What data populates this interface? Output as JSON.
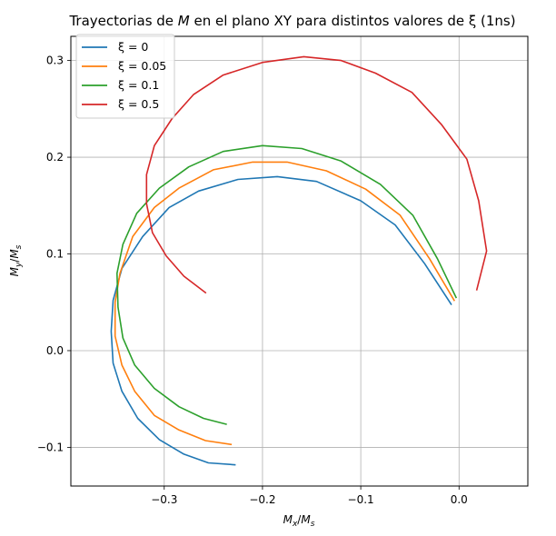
{
  "chart_data": {
    "type": "line",
    "title": "Trayectorias de M en el plano XY para distintos valores de ξ (1ns)",
    "title_parts": {
      "before": "Trayectorias de ",
      "symbol": "M",
      "after": " en el plano XY para distintos valores de ξ (1ns)"
    },
    "xlabel": "Mx/Ms",
    "ylabel": "My/Ms",
    "xlim": [
      -0.395,
      0.07
    ],
    "ylim": [
      -0.14,
      0.325
    ],
    "xticks": [
      -0.3,
      -0.2,
      -0.1,
      0.0
    ],
    "xtick_labels": [
      "−0.3",
      "−0.2",
      "−0.1",
      "0.0"
    ],
    "yticks": [
      -0.1,
      0.0,
      0.1,
      0.2,
      0.3
    ],
    "ytick_labels": [
      "−0.1",
      "0.0",
      "0.1",
      "0.2",
      "0.3"
    ],
    "grid": true,
    "legend_position": "upper-left",
    "series": [
      {
        "name": "ξ = 0",
        "color": "#1f77b4",
        "points": [
          [
            -0.008,
            0.048
          ],
          [
            -0.035,
            0.09
          ],
          [
            -0.065,
            0.13
          ],
          [
            -0.1,
            0.155
          ],
          [
            -0.145,
            0.175
          ],
          [
            -0.185,
            0.18
          ],
          [
            -0.225,
            0.177
          ],
          [
            -0.265,
            0.165
          ],
          [
            -0.295,
            0.148
          ],
          [
            -0.322,
            0.118
          ],
          [
            -0.343,
            0.085
          ],
          [
            -0.352,
            0.052
          ],
          [
            -0.354,
            0.02
          ],
          [
            -0.352,
            -0.013
          ],
          [
            -0.343,
            -0.042
          ],
          [
            -0.327,
            -0.07
          ],
          [
            -0.305,
            -0.092
          ],
          [
            -0.28,
            -0.107
          ],
          [
            -0.255,
            -0.116
          ],
          [
            -0.228,
            -0.118
          ]
        ]
      },
      {
        "name": "ξ = 0.05",
        "color": "#ff7f0e",
        "points": [
          [
            -0.005,
            0.052
          ],
          [
            -0.03,
            0.095
          ],
          [
            -0.06,
            0.14
          ],
          [
            -0.095,
            0.167
          ],
          [
            -0.135,
            0.186
          ],
          [
            -0.175,
            0.195
          ],
          [
            -0.21,
            0.195
          ],
          [
            -0.25,
            0.187
          ],
          [
            -0.285,
            0.168
          ],
          [
            -0.31,
            0.148
          ],
          [
            -0.332,
            0.118
          ],
          [
            -0.345,
            0.08
          ],
          [
            -0.35,
            0.05
          ],
          [
            -0.35,
            0.015
          ],
          [
            -0.343,
            -0.015
          ],
          [
            -0.33,
            -0.042
          ],
          [
            -0.31,
            -0.067
          ],
          [
            -0.285,
            -0.082
          ],
          [
            -0.258,
            -0.093
          ],
          [
            -0.232,
            -0.097
          ]
        ]
      },
      {
        "name": "ξ = 0.1",
        "color": "#2ca02c",
        "points": [
          [
            -0.003,
            0.055
          ],
          [
            -0.022,
            0.095
          ],
          [
            -0.047,
            0.14
          ],
          [
            -0.08,
            0.172
          ],
          [
            -0.12,
            0.196
          ],
          [
            -0.16,
            0.209
          ],
          [
            -0.2,
            0.212
          ],
          [
            -0.24,
            0.206
          ],
          [
            -0.275,
            0.19
          ],
          [
            -0.305,
            0.168
          ],
          [
            -0.328,
            0.142
          ],
          [
            -0.342,
            0.11
          ],
          [
            -0.348,
            0.08
          ],
          [
            -0.347,
            0.045
          ],
          [
            -0.342,
            0.013
          ],
          [
            -0.33,
            -0.015
          ],
          [
            -0.31,
            -0.039
          ],
          [
            -0.285,
            -0.058
          ],
          [
            -0.26,
            -0.07
          ],
          [
            -0.237,
            -0.076
          ]
        ]
      },
      {
        "name": "ξ = 0.5",
        "color": "#d62728",
        "points": [
          [
            0.018,
            0.063
          ],
          [
            0.028,
            0.103
          ],
          [
            0.02,
            0.155
          ],
          [
            0.008,
            0.198
          ],
          [
            -0.018,
            0.234
          ],
          [
            -0.048,
            0.267
          ],
          [
            -0.085,
            0.287
          ],
          [
            -0.12,
            0.3
          ],
          [
            -0.158,
            0.304
          ],
          [
            -0.2,
            0.298
          ],
          [
            -0.24,
            0.285
          ],
          [
            -0.27,
            0.265
          ],
          [
            -0.292,
            0.24
          ],
          [
            -0.31,
            0.212
          ],
          [
            -0.318,
            0.182
          ],
          [
            -0.318,
            0.152
          ],
          [
            -0.312,
            0.122
          ],
          [
            -0.298,
            0.098
          ],
          [
            -0.28,
            0.077
          ],
          [
            -0.258,
            0.06
          ]
        ]
      }
    ]
  }
}
